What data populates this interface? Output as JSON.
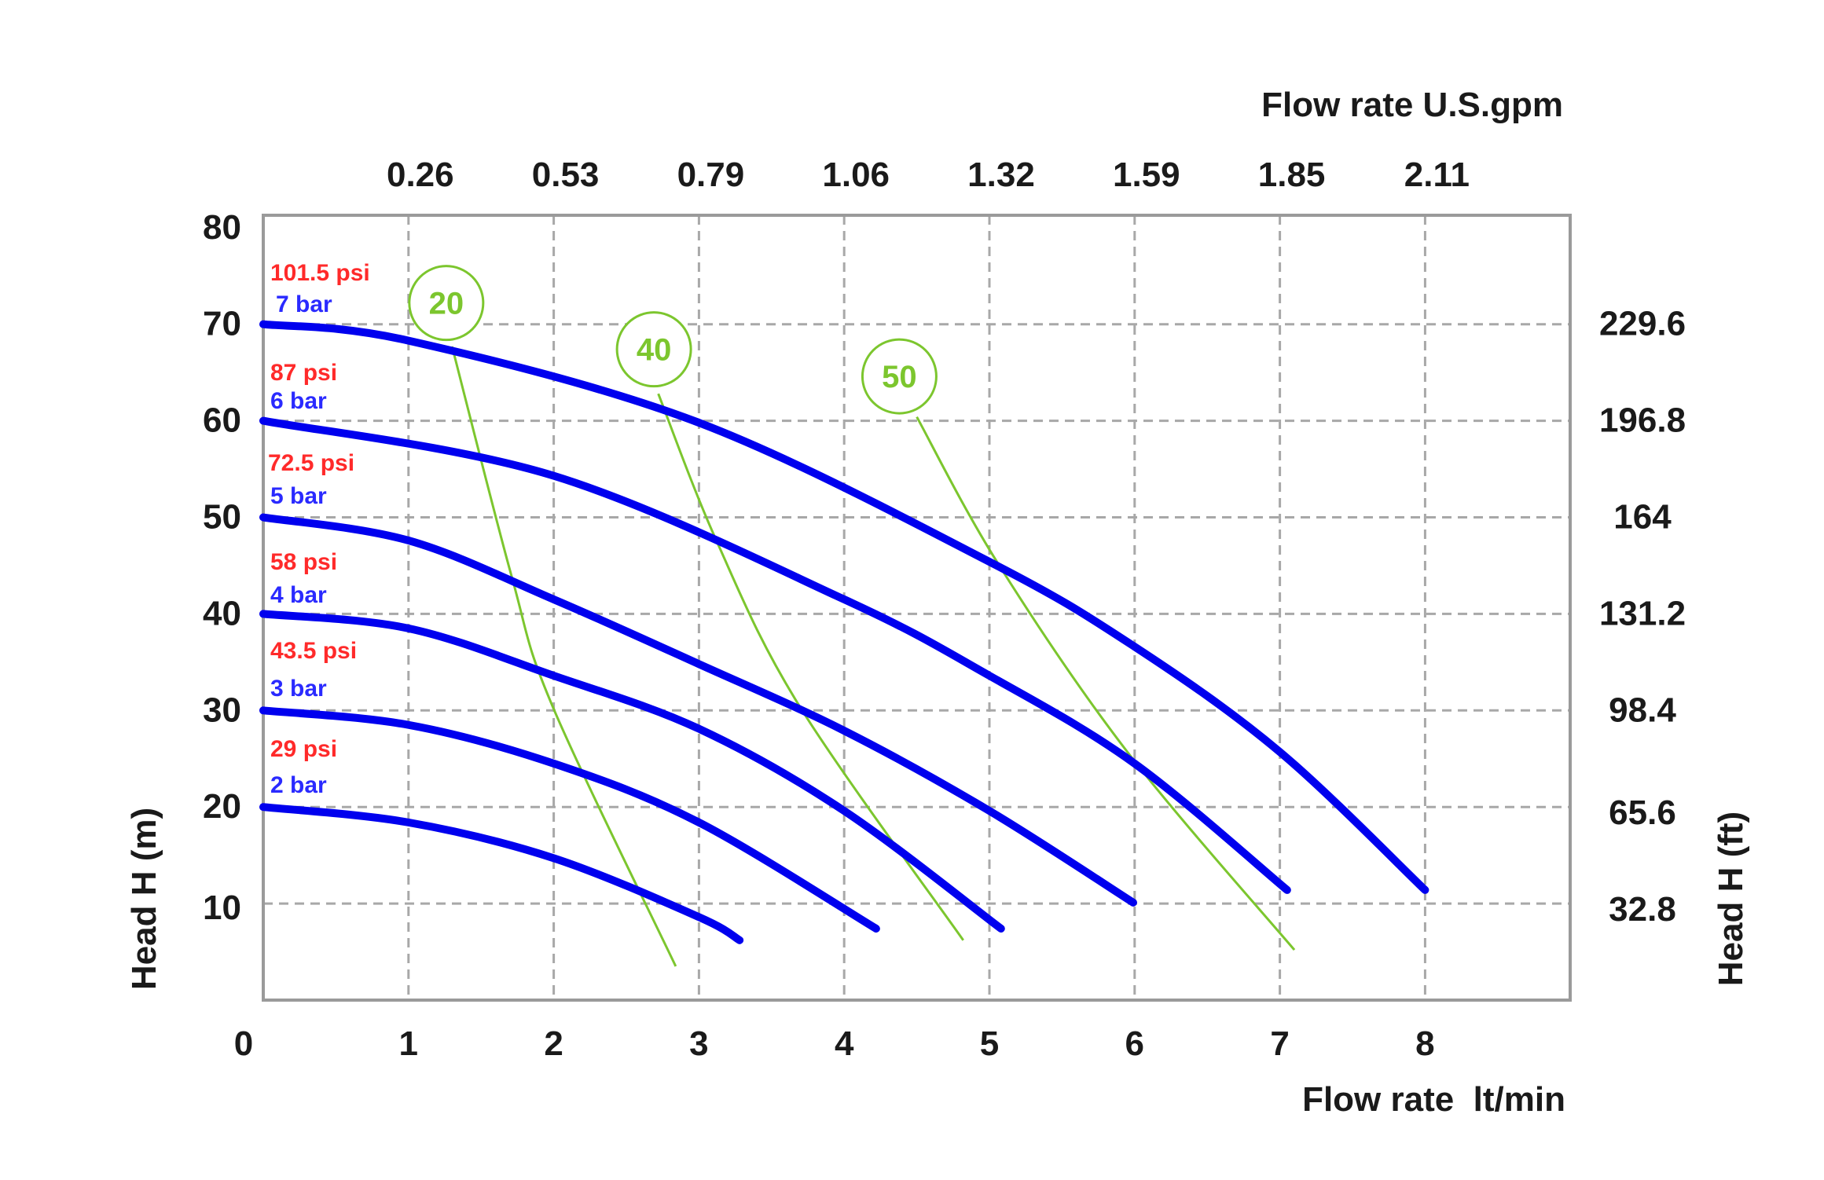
{
  "chart_data": {
    "type": "line",
    "xlabel": "Flow rate  lt/min",
    "ylabel": "Head H (m)",
    "x2label": "Flow rate U.S.gpm",
    "y2label": "Head H (ft)",
    "xlim": [
      0,
      9
    ],
    "ylim": [
      0,
      81.3
    ],
    "grid": true,
    "x_ticks": [
      "0",
      "1",
      "2",
      "3",
      "4",
      "5",
      "6",
      "7",
      "8"
    ],
    "y_ticks": [
      "80",
      "70",
      "60",
      "50",
      "40",
      "30",
      "20",
      "10"
    ],
    "x2_ticks": [
      "0.26",
      "0.53",
      "0.79",
      "1.06",
      "1.32",
      "1.59",
      "1.85",
      "2.11"
    ],
    "y2_ticks": [
      "229.6",
      "196.8",
      "164",
      "131.2",
      "98.4",
      "65.6",
      "32.8"
    ],
    "series": [
      {
        "name": "7 bar",
        "psi": "101.5 psi",
        "points": [
          [
            0,
            70
          ],
          [
            1,
            68.3
          ],
          [
            3,
            59.8
          ],
          [
            5,
            45.4
          ],
          [
            6,
            36.6
          ],
          [
            7,
            25.7
          ],
          [
            8.0,
            11.4
          ]
        ]
      },
      {
        "name": "6 bar",
        "psi": "87 psi",
        "points": [
          [
            0,
            60
          ],
          [
            2,
            54.3
          ],
          [
            4,
            41.5
          ],
          [
            5,
            33.6
          ],
          [
            6,
            24.5
          ],
          [
            7.05,
            11.4
          ]
        ]
      },
      {
        "name": "5 bar",
        "psi": "72.5 psi",
        "points": [
          [
            0,
            50
          ],
          [
            1,
            47.6
          ],
          [
            2,
            41.5
          ],
          [
            3,
            34.8
          ],
          [
            4,
            27.9
          ],
          [
            5,
            19.6
          ],
          [
            5.99,
            10.1
          ]
        ]
      },
      {
        "name": "4 bar",
        "psi": "58 psi",
        "points": [
          [
            0,
            40
          ],
          [
            1,
            38.5
          ],
          [
            2,
            33.6
          ],
          [
            3,
            28.1
          ],
          [
            4,
            19.6
          ],
          [
            5.08,
            7.4
          ]
        ]
      },
      {
        "name": "3 bar",
        "psi": "43.5 psi",
        "points": [
          [
            0,
            30
          ],
          [
            1,
            28.5
          ],
          [
            2,
            24.5
          ],
          [
            3,
            18.4
          ],
          [
            4.22,
            7.4
          ]
        ]
      },
      {
        "name": "2 bar",
        "psi": "29 psi",
        "points": [
          [
            0,
            20
          ],
          [
            1,
            18.4
          ],
          [
            2,
            14.7
          ],
          [
            3,
            8.6
          ],
          [
            3.28,
            6.2
          ]
        ]
      }
    ],
    "efficiency_lines": [
      {
        "label": "20",
        "marker": [
          1.26,
          72.2
        ],
        "points": [
          [
            1.3,
            67.7
          ],
          [
            1.71,
            43.9
          ],
          [
            1.99,
            30.5
          ],
          [
            2.84,
            3.5
          ]
        ]
      },
      {
        "label": "40",
        "marker": [
          2.69,
          67.4
        ],
        "points": [
          [
            2.72,
            62.8
          ],
          [
            3.12,
            47.6
          ],
          [
            3.69,
            30.5
          ],
          [
            4.82,
            6.2
          ]
        ]
      },
      {
        "label": "50",
        "marker": [
          4.38,
          64.6
        ],
        "points": [
          [
            4.5,
            60.4
          ],
          [
            5.06,
            45.2
          ],
          [
            5.95,
            25.7
          ],
          [
            7.1,
            5.2
          ]
        ]
      }
    ],
    "colors": {
      "curve": "#0000ee",
      "efficiency": "#7cc62e",
      "psi_text": "#ff2a2a",
      "bar_text": "#2a2aff",
      "grid": "#a8a8a8",
      "frame": "#9a9a9a"
    }
  }
}
